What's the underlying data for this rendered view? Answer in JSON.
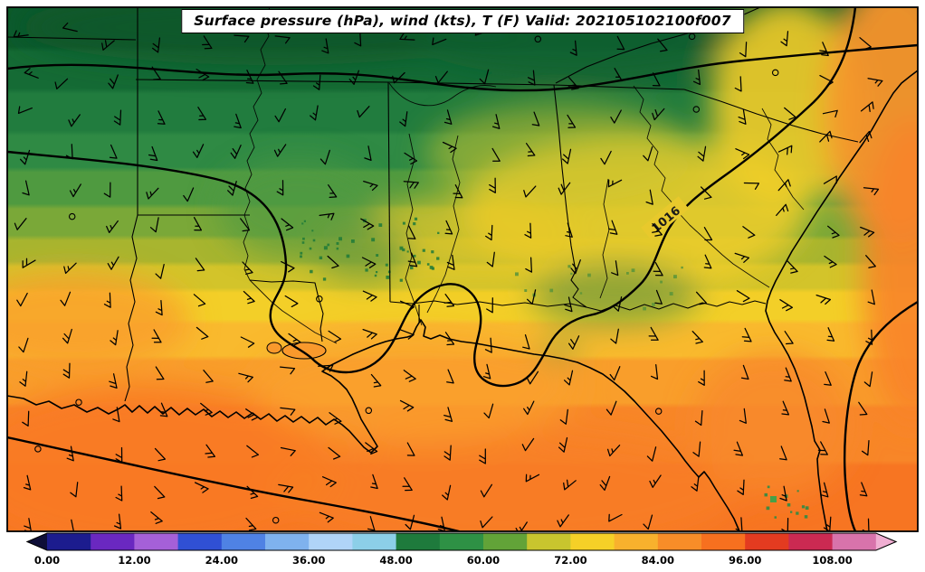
{
  "title": "Surface pressure (hPa), wind (kts), T (F) Valid: 202105102100f007",
  "chart_data": {
    "type": "heatmap",
    "title": "Surface pressure (hPa), wind (kts), T (F) Valid: 202105102100f007",
    "region_depicted": "Southeastern United States and Gulf of Mexico",
    "fields_shown": [
      "surface pressure (hPa) contours",
      "wind barbs (kts)",
      "temperature shading (F)"
    ],
    "pressure": {
      "units": "hPa",
      "labeled_contours": [
        "1016"
      ]
    },
    "pressure_contour_labels": [
      "1016"
    ],
    "wind": {
      "units": "kts",
      "depiction": "station wind barbs on a regular grid, calm stations shown as open circles",
      "typical_speeds_kts": "5-15"
    },
    "temperature_pattern": [
      {
        "area": "far north inland (TN / north MS / north AL)",
        "approx_F": "48-58",
        "color": "dark green"
      },
      {
        "area": "central MS / AL / GA band",
        "approx_F": "62-74",
        "color": "yellow-green to yellow"
      },
      {
        "area": "Gulf of Mexico, coasts, Florida, Atlantic",
        "approx_F": "78-92",
        "color": "orange"
      }
    ],
    "colorbar": {
      "orientation": "horizontal",
      "extend": "both",
      "ticks": [
        "0.00",
        "12.00",
        "24.00",
        "36.00",
        "48.00",
        "60.00",
        "72.00",
        "84.00",
        "96.00",
        "108.00"
      ],
      "tick_values": [
        0,
        12,
        24,
        36,
        48,
        60,
        72,
        84,
        96,
        108
      ],
      "segment_step_F": 6,
      "range_F": [
        0,
        114
      ],
      "under_color": "#0e0e38",
      "over_color": "#f0aed2",
      "colors": [
        "#1c1c8e",
        "#6a28c0",
        "#a560d8",
        "#3050d4",
        "#4f82e4",
        "#7fb2ee",
        "#b0d4f8",
        "#8ccfe8",
        "#1e7a3c",
        "#2e9145",
        "#62a338",
        "#c8c52e",
        "#f5d027",
        "#f8b12d",
        "#f88d28",
        "#f7701f",
        "#e33b20",
        "#cb2a52",
        "#d873ab"
      ]
    }
  }
}
